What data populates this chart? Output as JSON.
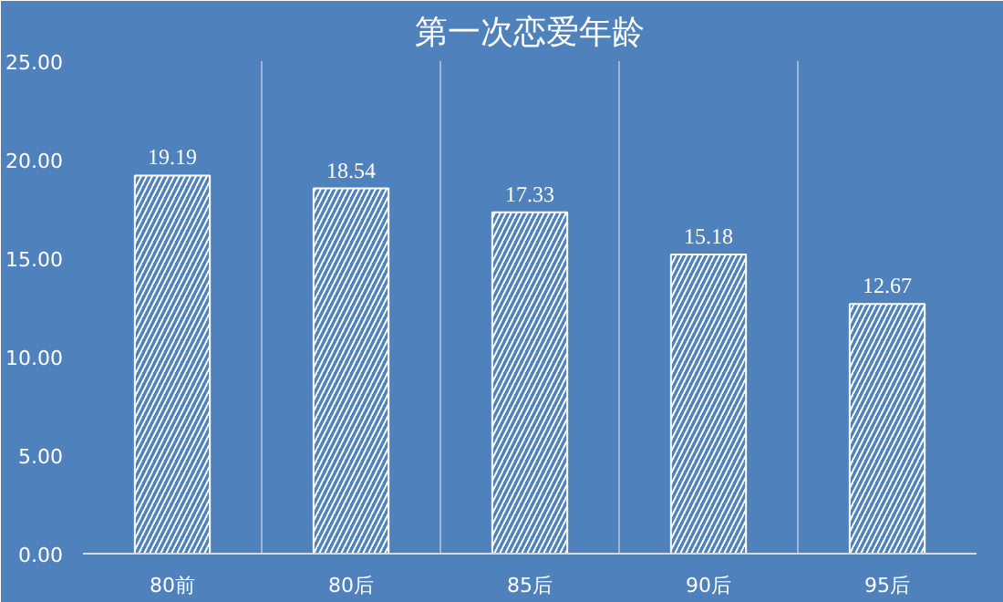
{
  "chart_data": {
    "type": "bar",
    "title": "第一次恋爱年龄",
    "categories": [
      "80前",
      "80后",
      "85后",
      "90后",
      "95后"
    ],
    "values": [
      19.19,
      18.54,
      17.33,
      15.18,
      12.67
    ],
    "color": "#ffffff",
    "data_labels": true,
    "ylim": [
      0,
      25
    ],
    "yticks": [
      {
        "value": 0,
        "label": "0.00"
      },
      {
        "value": 5,
        "label": "5.00"
      },
      {
        "value": 10,
        "label": "10.00"
      },
      {
        "value": 15,
        "label": "15.00"
      },
      {
        "value": 20,
        "label": "20.00"
      },
      {
        "value": 25,
        "label": "25.00"
      }
    ],
    "grid": "x"
  }
}
